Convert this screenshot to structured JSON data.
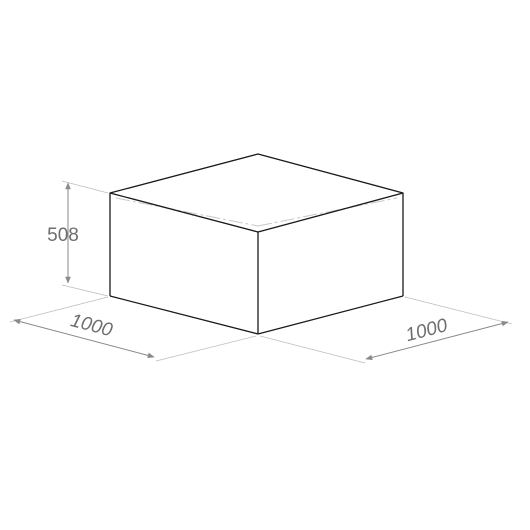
{
  "dimensions": {
    "height": "508",
    "width_left": "1000",
    "width_right": "1000"
  },
  "colors": {
    "outline": "#1a1a1a",
    "dimension": "#8a8a8a",
    "hidden": "#c8c8c8"
  }
}
